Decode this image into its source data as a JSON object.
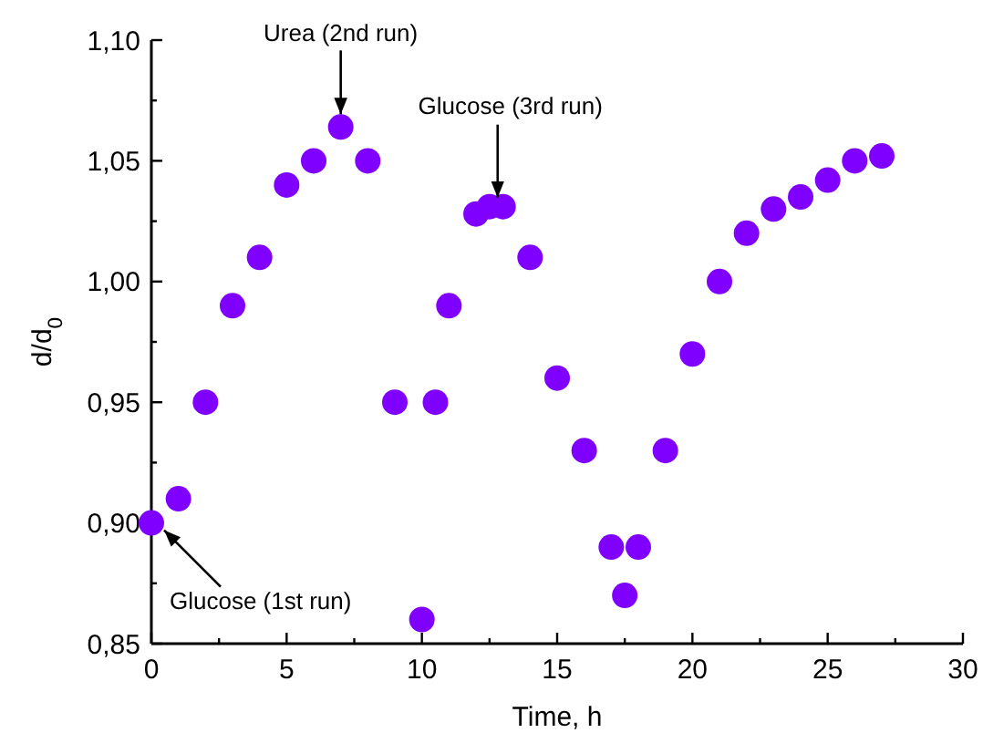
{
  "chart_data": {
    "type": "scatter",
    "xlabel": "Time, h",
    "ylabel": "d/d$_{0}$",
    "x": [
      0,
      1,
      2,
      3,
      4,
      5,
      6,
      7,
      8,
      9,
      10,
      10.5,
      11,
      12,
      12.5,
      13,
      14,
      15,
      16,
      17,
      17.5,
      18,
      19,
      20,
      21,
      22,
      23,
      24,
      25,
      26,
      27
    ],
    "series": [
      {
        "color": "#8000ff",
        "values": [
          0.9,
          0.91,
          0.95,
          0.99,
          1.01,
          1.04,
          1.05,
          1.064,
          1.05,
          0.95,
          0.86,
          0.95,
          0.99,
          1.028,
          1.031,
          1.031,
          1.01,
          0.96,
          0.93,
          0.89,
          0.87,
          0.89,
          0.93,
          0.97,
          1.0,
          1.02,
          1.03,
          1.035,
          1.042,
          1.05,
          1.052
        ]
      }
    ],
    "marker": "circle",
    "grid": false,
    "xlim": [
      0,
      30
    ],
    "xticks": [
      0,
      {
        "value": 2.5,
        "label": null
      },
      5,
      {
        "value": 7.5,
        "label": null
      },
      10,
      {
        "value": 12.5,
        "label": null
      },
      15,
      {
        "value": 17.5,
        "label": null
      },
      20,
      {
        "value": 22.5,
        "label": null
      },
      25,
      {
        "value": 27.5,
        "label": null
      },
      30
    ],
    "ylim": [
      0.85,
      1.1
    ],
    "yticks": [
      {
        "value": 0.85,
        "label": "0,85"
      },
      {
        "value": 0.875,
        "label": null
      },
      {
        "value": 0.9,
        "label": "0,90"
      },
      {
        "value": 0.925,
        "label": null
      },
      {
        "value": 0.95,
        "label": "0,95"
      },
      {
        "value": 0.975,
        "label": null
      },
      {
        "value": 1.0,
        "label": "1,00"
      },
      {
        "value": 1.025,
        "label": null
      },
      {
        "value": 1.05,
        "label": "1,05"
      },
      {
        "value": 1.075,
        "label": null
      },
      {
        "value": 1.1,
        "label": "1,10"
      }
    ],
    "annotations": [
      {
        "text": "Glucose (1st run)",
        "x": 0,
        "y": 0.9
      },
      {
        "text": "Urea (2nd run)",
        "x": 7,
        "y": 1.064
      },
      {
        "text": "Glucose (3rd run)",
        "x": 12.8,
        "y": 1.031
      }
    ]
  }
}
